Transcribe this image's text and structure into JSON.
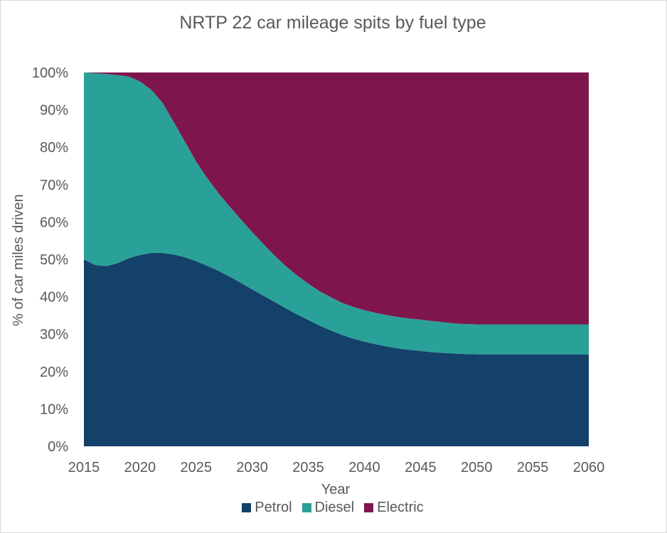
{
  "chart_data": {
    "type": "area",
    "stacked": true,
    "title": "NRTP 22 car mileage spits by fuel type",
    "xlabel": "Year",
    "ylabel": "% of car miles driven",
    "x": [
      2015,
      2016,
      2017,
      2018,
      2019,
      2020,
      2021,
      2022,
      2023,
      2024,
      2025,
      2026,
      2027,
      2028,
      2029,
      2030,
      2031,
      2032,
      2033,
      2034,
      2035,
      2036,
      2037,
      2038,
      2039,
      2040,
      2041,
      2042,
      2043,
      2044,
      2045,
      2046,
      2047,
      2048,
      2049,
      2050,
      2051,
      2052,
      2053,
      2054,
      2055,
      2056,
      2057,
      2058,
      2059,
      2060
    ],
    "x_ticks": [
      "2015",
      "2020",
      "2025",
      "2030",
      "2035",
      "2040",
      "2045",
      "2050",
      "2055",
      "2060"
    ],
    "y_ticks": [
      "0%",
      "10%",
      "20%",
      "30%",
      "40%",
      "50%",
      "60%",
      "70%",
      "80%",
      "90%",
      "100%"
    ],
    "ylim": [
      0,
      100
    ],
    "series": [
      {
        "name": "Petrol",
        "color": "#134169",
        "values": [
          50,
          48.5,
          48.2,
          49,
          50.3,
          51.2,
          51.7,
          51.7,
          51.3,
          50.6,
          49.5,
          48.3,
          46.9,
          45.4,
          43.7,
          42,
          40.3,
          38.6,
          36.9,
          35.3,
          33.8,
          32.3,
          31,
          29.8,
          28.8,
          28,
          27.3,
          26.7,
          26.2,
          25.8,
          25.5,
          25.2,
          25,
          24.8,
          24.7,
          24.6,
          24.6,
          24.6,
          24.6,
          24.6,
          24.6,
          24.6,
          24.6,
          24.6,
          24.6,
          24.6
        ]
      },
      {
        "name": "Diesel",
        "color": "#2aa198",
        "values": [
          50,
          51.3,
          51.4,
          50.3,
          48.6,
          46.4,
          43.7,
          40.2,
          35.5,
          30.9,
          26.7,
          23.4,
          20.8,
          18.7,
          17,
          15.3,
          13.8,
          12.4,
          11.3,
          10.4,
          9.7,
          9.2,
          8.9,
          8.6,
          8.5,
          8.4,
          8.4,
          8.4,
          8.4,
          8.4,
          8.4,
          8.3,
          8.2,
          8.1,
          8,
          8,
          8,
          8,
          8,
          8,
          8,
          8,
          8,
          8,
          8,
          8
        ]
      },
      {
        "name": "Electric",
        "color": "#7f154d",
        "values": [
          0,
          0.2,
          0.4,
          0.7,
          1.1,
          2.4,
          4.6,
          8.1,
          13.2,
          18.5,
          23.8,
          28.3,
          32.3,
          35.9,
          39.3,
          42.7,
          45.9,
          49,
          51.8,
          54.3,
          56.5,
          58.5,
          60.1,
          61.6,
          62.7,
          63.6,
          64.3,
          64.9,
          65.4,
          65.8,
          66.1,
          66.5,
          66.8,
          67.1,
          67.3,
          67.4,
          67.4,
          67.4,
          67.4,
          67.4,
          67.4,
          67.4,
          67.4,
          67.4,
          67.4,
          67.4
        ]
      }
    ],
    "legend_position": "bottom",
    "grid": false
  }
}
